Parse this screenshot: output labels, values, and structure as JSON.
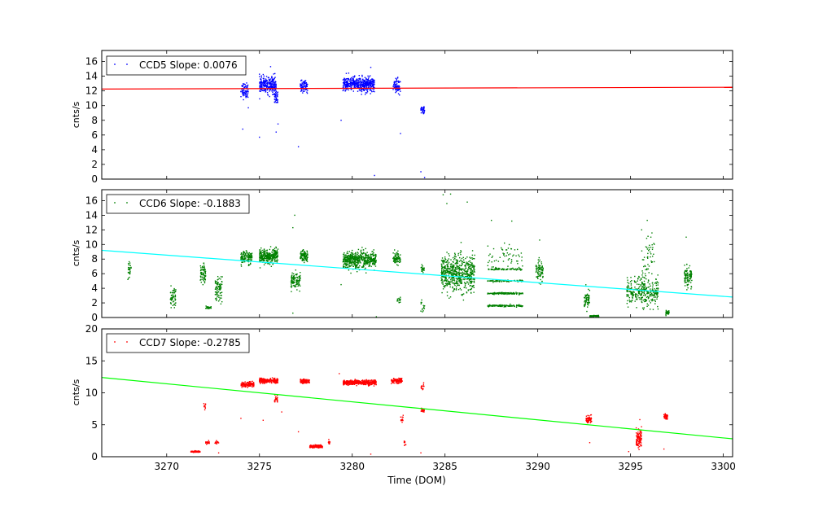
{
  "chart_data": [
    {
      "type": "scatter",
      "series": [
        {
          "name": "CCD5",
          "color": "#0000ff"
        }
      ],
      "legend": "CCD5 Slope: 0.0076",
      "legend_marker_color": "#0000ff",
      "legend_location": "top-left",
      "ylabel": "cnts/s",
      "xlim": [
        3266.5,
        3300.5
      ],
      "ylim": [
        0,
        17.5
      ],
      "yticks": [
        0,
        2,
        4,
        6,
        8,
        10,
        12,
        14,
        16
      ],
      "fit_line": {
        "color": "#ff0000",
        "x": [
          3266.5,
          3300.5
        ],
        "y": [
          12.25,
          12.5
        ]
      },
      "clusters": [
        {
          "x": [
            3274.0,
            3274.4
          ],
          "y": [
            12.1,
            0.9
          ],
          "n": 70
        },
        {
          "x": [
            3275.0,
            3275.9
          ],
          "y": [
            12.8,
            0.9
          ],
          "n": 260
        },
        {
          "x": [
            3275.8,
            3276.0
          ],
          "y": [
            11.0,
            0.9
          ],
          "n": 40
        },
        {
          "x": [
            3277.2,
            3277.6
          ],
          "y": [
            12.6,
            0.6
          ],
          "n": 80
        },
        {
          "x": [
            3279.5,
            3281.2
          ],
          "y": [
            12.9,
            0.8
          ],
          "n": 480
        },
        {
          "x": [
            3282.2,
            3282.6
          ],
          "y": [
            12.7,
            0.8
          ],
          "n": 70
        },
        {
          "x": [
            3283.7,
            3283.9
          ],
          "y": [
            9.3,
            0.5
          ],
          "n": 35
        }
      ],
      "outliers": [
        [
          3274.1,
          6.8
        ],
        [
          3274.4,
          9.7
        ],
        [
          3275.0,
          5.7
        ],
        [
          3275.9,
          6.4
        ],
        [
          3276.0,
          7.5
        ],
        [
          3277.1,
          4.4
        ],
        [
          3279.4,
          8.0
        ],
        [
          3281.2,
          0.5
        ],
        [
          3282.6,
          6.2
        ],
        [
          3283.7,
          1.0
        ],
        [
          3283.9,
          0.2
        ],
        [
          3281.0,
          15.2
        ],
        [
          3275.6,
          15.3
        ]
      ]
    },
    {
      "type": "scatter",
      "series": [
        {
          "name": "CCD6",
          "color": "#008000"
        }
      ],
      "legend": "CCD6 Slope: -0.1883",
      "legend_marker_color": "#008000",
      "legend_location": "top-left",
      "ylabel": "cnts/s",
      "xlim": [
        3266.5,
        3300.5
      ],
      "ylim": [
        0,
        17.5
      ],
      "yticks": [
        0,
        2,
        4,
        6,
        8,
        10,
        12,
        14,
        16
      ],
      "fit_line": {
        "color": "#00ffff",
        "x": [
          3266.5,
          3300.5
        ],
        "y": [
          9.2,
          2.8
        ]
      },
      "clusters": [
        {
          "x": [
            3267.9,
            3268.1
          ],
          "y": [
            6.3,
            1.0
          ],
          "n": 30
        },
        {
          "x": [
            3270.2,
            3270.5
          ],
          "y": [
            2.8,
            1.2
          ],
          "n": 60
        },
        {
          "x": [
            3271.8,
            3272.1
          ],
          "y": [
            5.8,
            1.2
          ],
          "n": 70
        },
        {
          "x": [
            3272.1,
            3272.4
          ],
          "y": [
            1.4,
            0.2
          ],
          "n": 25
        },
        {
          "x": [
            3272.6,
            3273.0
          ],
          "y": [
            3.9,
            1.3
          ],
          "n": 80
        },
        {
          "x": [
            3274.0,
            3274.6
          ],
          "y": [
            8.2,
            0.7
          ],
          "n": 130
        },
        {
          "x": [
            3275.0,
            3276.0
          ],
          "y": [
            8.4,
            0.8
          ],
          "n": 300
        },
        {
          "x": [
            3276.7,
            3277.2
          ],
          "y": [
            5.0,
            1.0
          ],
          "n": 110
        },
        {
          "x": [
            3277.2,
            3277.6
          ],
          "y": [
            8.4,
            0.7
          ],
          "n": 110
        },
        {
          "x": [
            3279.5,
            3281.3
          ],
          "y": [
            7.9,
            0.9
          ],
          "n": 520
        },
        {
          "x": [
            3282.2,
            3282.6
          ],
          "y": [
            8.1,
            0.7
          ],
          "n": 80
        },
        {
          "x": [
            3282.4,
            3282.6
          ],
          "y": [
            2.4,
            0.4
          ],
          "n": 20
        },
        {
          "x": [
            3283.7,
            3283.9
          ],
          "y": [
            6.6,
            0.5
          ],
          "n": 20
        },
        {
          "x": [
            3283.7,
            3283.9
          ],
          "y": [
            1.5,
            0.8
          ],
          "n": 15
        },
        {
          "x": [
            3284.8,
            3286.6
          ],
          "y": [
            6.0,
            2.0
          ],
          "n": 620
        },
        {
          "x": [
            3287.3,
            3289.2
          ],
          "y": [
            3.3,
            0.1
          ],
          "n": 140
        },
        {
          "x": [
            3287.3,
            3289.2
          ],
          "y": [
            1.6,
            0.1
          ],
          "n": 140
        },
        {
          "x": [
            3287.3,
            3289.2
          ],
          "y": [
            6.6,
            0.1
          ],
          "n": 70
        },
        {
          "x": [
            3287.3,
            3289.2
          ],
          "y": [
            5.0,
            0.1
          ],
          "n": 70
        },
        {
          "x": [
            3287.3,
            3289.2
          ],
          "y": [
            8.3,
            1.5
          ],
          "n": 60
        },
        {
          "x": [
            3289.9,
            3290.3
          ],
          "y": [
            6.4,
            1.2
          ],
          "n": 80
        },
        {
          "x": [
            3292.5,
            3292.8
          ],
          "y": [
            2.5,
            1.0
          ],
          "n": 60
        },
        {
          "x": [
            3292.8,
            3293.3
          ],
          "y": [
            0.2,
            0.1
          ],
          "n": 60
        },
        {
          "x": [
            3294.8,
            3296.5
          ],
          "y": [
            3.5,
            1.7
          ],
          "n": 320
        },
        {
          "x": [
            3295.6,
            3296.3
          ],
          "y": [
            8.5,
            2.2
          ],
          "n": 45
        },
        {
          "x": [
            3296.9,
            3297.1
          ],
          "y": [
            0.6,
            0.3
          ],
          "n": 30
        },
        {
          "x": [
            3297.9,
            3298.3
          ],
          "y": [
            5.6,
            1.1
          ],
          "n": 90
        }
      ],
      "outliers": [
        [
          3276.9,
          14.0
        ],
        [
          3276.8,
          12.3
        ],
        [
          3284.9,
          16.8
        ],
        [
          3285.1,
          15.6
        ],
        [
          3285.3,
          16.9
        ],
        [
          3286.2,
          15.8
        ],
        [
          3287.5,
          13.3
        ],
        [
          3288.6,
          13.2
        ],
        [
          3295.9,
          13.3
        ],
        [
          3298.0,
          11.0
        ],
        [
          3276.8,
          0.6
        ],
        [
          3281.3,
          0.1
        ],
        [
          3279.4,
          4.5
        ],
        [
          3290.1,
          10.6
        ],
        [
          3295.6,
          12.0
        ]
      ]
    },
    {
      "type": "scatter",
      "series": [
        {
          "name": "CCD7",
          "color": "#ff0000"
        }
      ],
      "legend": "CCD7 Slope: -0.2785",
      "legend_marker_color": "#ff0000",
      "legend_location": "top-left",
      "ylabel": "cnts/s",
      "xlabel": "Time (DOM)",
      "xlim": [
        3266.5,
        3300.5
      ],
      "ylim": [
        0,
        20
      ],
      "yticks": [
        0,
        5,
        10,
        15,
        20
      ],
      "xticks": [
        3270,
        3275,
        3280,
        3285,
        3290,
        3295,
        3300
      ],
      "fit_line": {
        "color": "#00ff00",
        "x": [
          3266.5,
          3300.5
        ],
        "y": [
          12.4,
          2.8
        ]
      },
      "clusters": [
        {
          "x": [
            3271.3,
            3271.8
          ],
          "y": [
            0.8,
            0.1
          ],
          "n": 60
        },
        {
          "x": [
            3272.0,
            3272.1
          ],
          "y": [
            8.0,
            0.4
          ],
          "n": 10
        },
        {
          "x": [
            3272.1,
            3272.3
          ],
          "y": [
            2.2,
            0.2
          ],
          "n": 25
        },
        {
          "x": [
            3272.6,
            3272.8
          ],
          "y": [
            2.2,
            0.2
          ],
          "n": 15
        },
        {
          "x": [
            3274.0,
            3274.7
          ],
          "y": [
            11.3,
            0.3
          ],
          "n": 130
        },
        {
          "x": [
            3275.0,
            3276.0
          ],
          "y": [
            11.9,
            0.3
          ],
          "n": 220
        },
        {
          "x": [
            3275.8,
            3276.0
          ],
          "y": [
            9.0,
            0.4
          ],
          "n": 30
        },
        {
          "x": [
            3277.2,
            3277.7
          ],
          "y": [
            11.8,
            0.3
          ],
          "n": 100
        },
        {
          "x": [
            3277.7,
            3278.4
          ],
          "y": [
            1.6,
            0.2
          ],
          "n": 120
        },
        {
          "x": [
            3278.7,
            3278.8
          ],
          "y": [
            2.3,
            0.3
          ],
          "n": 15
        },
        {
          "x": [
            3279.5,
            3281.3
          ],
          "y": [
            11.6,
            0.3
          ],
          "n": 420
        },
        {
          "x": [
            3282.1,
            3282.7
          ],
          "y": [
            11.9,
            0.3
          ],
          "n": 120
        },
        {
          "x": [
            3282.6,
            3282.8
          ],
          "y": [
            5.8,
            0.5
          ],
          "n": 15
        },
        {
          "x": [
            3282.8,
            3282.9
          ],
          "y": [
            2.1,
            0.3
          ],
          "n": 10
        },
        {
          "x": [
            3283.7,
            3283.9
          ],
          "y": [
            11.0,
            0.6
          ],
          "n": 15
        },
        {
          "x": [
            3283.7,
            3283.9
          ],
          "y": [
            7.3,
            0.3
          ],
          "n": 20
        },
        {
          "x": [
            3292.6,
            3292.9
          ],
          "y": [
            5.8,
            0.5
          ],
          "n": 60
        },
        {
          "x": [
            3295.3,
            3295.6
          ],
          "y": [
            2.8,
            1.2
          ],
          "n": 100
        },
        {
          "x": [
            3296.8,
            3297.0
          ],
          "y": [
            6.3,
            0.4
          ],
          "n": 50
        }
      ],
      "outliers": [
        [
          3274.0,
          6.0
        ],
        [
          3275.2,
          5.7
        ],
        [
          3276.2,
          7.0
        ],
        [
          3272.8,
          0.6
        ],
        [
          3277.1,
          3.9
        ],
        [
          3279.3,
          13.0
        ],
        [
          3281.0,
          0.4
        ],
        [
          3283.7,
          0.6
        ],
        [
          3292.8,
          2.2
        ],
        [
          3295.5,
          5.8
        ],
        [
          3294.9,
          0.8
        ],
        [
          3296.8,
          1.2
        ]
      ]
    }
  ]
}
